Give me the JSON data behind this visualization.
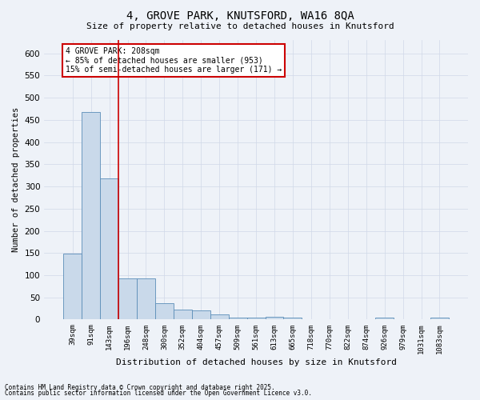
{
  "title1": "4, GROVE PARK, KNUTSFORD, WA16 8QA",
  "title2": "Size of property relative to detached houses in Knutsford",
  "xlabel": "Distribution of detached houses by size in Knutsford",
  "ylabel": "Number of detached properties",
  "categories": [
    "39sqm",
    "91sqm",
    "143sqm",
    "196sqm",
    "248sqm",
    "300sqm",
    "352sqm",
    "404sqm",
    "457sqm",
    "509sqm",
    "561sqm",
    "613sqm",
    "665sqm",
    "718sqm",
    "770sqm",
    "822sqm",
    "874sqm",
    "926sqm",
    "979sqm",
    "1031sqm",
    "1083sqm"
  ],
  "values": [
    148,
    467,
    318,
    93,
    93,
    37,
    23,
    20,
    11,
    5,
    5,
    7,
    5,
    1,
    0,
    0,
    0,
    4,
    0,
    0,
    4
  ],
  "bar_color": "#c9d9ea",
  "bar_edge_color": "#5b8db8",
  "grid_color": "#d0d8e8",
  "background_color": "#eef2f8",
  "red_line_index": 3,
  "annotation_text": "4 GROVE PARK: 208sqm\n← 85% of detached houses are smaller (953)\n15% of semi-detached houses are larger (171) →",
  "annotation_box_color": "#ffffff",
  "annotation_border_color": "#cc0000",
  "ylim": [
    0,
    630
  ],
  "yticks": [
    0,
    50,
    100,
    150,
    200,
    250,
    300,
    350,
    400,
    450,
    500,
    550,
    600
  ],
  "footer1": "Contains HM Land Registry data © Crown copyright and database right 2025.",
  "footer2": "Contains public sector information licensed under the Open Government Licence v3.0."
}
